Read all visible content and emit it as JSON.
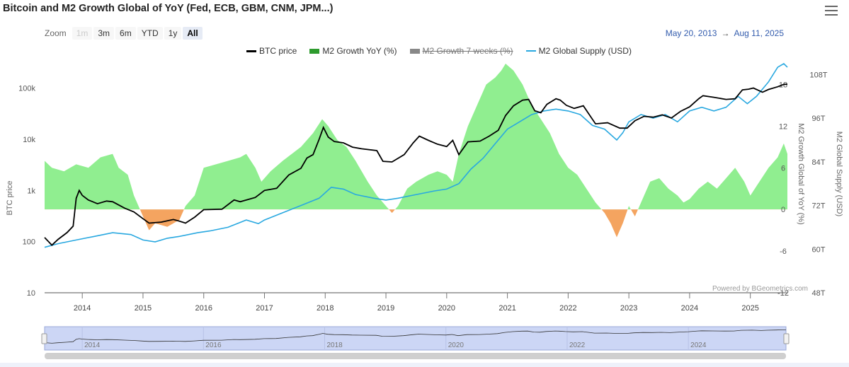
{
  "title": "Bitcoin and M2 Growth Global of YoY (Fed, ECB, GBM, CNM, JPM...)",
  "toolbar": {
    "zoom_label": "Zoom",
    "buttons": [
      "1m",
      "3m",
      "6m",
      "YTD",
      "1y",
      "All"
    ],
    "active": "All",
    "disabled": [
      "1m"
    ],
    "range_from": "May 20, 2013",
    "range_arrow": "→",
    "range_to": "Aug 11, 2025"
  },
  "legend": [
    {
      "name": "BTC price",
      "color": "#000000",
      "hidden": false
    },
    {
      "name": "M2 Growth YoY (%)",
      "color": "#2e9b2e",
      "hidden": false
    },
    {
      "name": "M2 Growth 7 weeks (%)",
      "color": "#888888",
      "hidden": true
    },
    {
      "name": "M2 Global Supply (USD)",
      "color": "#29a8e0",
      "hidden": false
    }
  ],
  "credit": "Powered by BGeometrics.com",
  "colors": {
    "btc": "#000000",
    "growth_pos": "#90ee90",
    "growth_neg": "#f4a460",
    "supply": "#29a8e0",
    "navigator_bg": "#ccd6f5"
  },
  "chart_data": {
    "type": "line",
    "x_range": [
      2013.38,
      2025.61
    ],
    "x_ticks": [
      "2014",
      "2015",
      "2016",
      "2017",
      "2018",
      "2019",
      "2020",
      "2021",
      "2022",
      "2023",
      "2024",
      "2025"
    ],
    "left_axis": {
      "label": "BTC price",
      "scale": "log",
      "range": [
        10,
        300000
      ],
      "ticks": [
        "10",
        "100",
        "1k",
        "10k",
        "100k"
      ]
    },
    "right_axis_growth": {
      "label": "M2 Growth Global of YoY (%)",
      "range": [
        -12,
        21
      ],
      "ticks": [
        "-12",
        "-6",
        "0",
        "6",
        "12",
        "18"
      ]
    },
    "right_axis_supply": {
      "label": "M2 Global Supply (USD)",
      "range": [
        48,
        111
      ],
      "ticks": [
        "48T",
        "60T",
        "72T",
        "84T",
        "96T",
        "108T"
      ]
    },
    "series": [
      {
        "name": "BTC price",
        "axis": "left",
        "points": [
          [
            2013.38,
            120
          ],
          [
            2013.5,
            85
          ],
          [
            2013.6,
            110
          ],
          [
            2013.75,
            150
          ],
          [
            2013.85,
            200
          ],
          [
            2013.9,
            700
          ],
          [
            2013.95,
            1000
          ],
          [
            2014.0,
            800
          ],
          [
            2014.1,
            650
          ],
          [
            2014.25,
            550
          ],
          [
            2014.4,
            620
          ],
          [
            2014.5,
            600
          ],
          [
            2014.7,
            450
          ],
          [
            2014.85,
            380
          ],
          [
            2015.0,
            280
          ],
          [
            2015.1,
            230
          ],
          [
            2015.3,
            240
          ],
          [
            2015.5,
            270
          ],
          [
            2015.6,
            250
          ],
          [
            2015.7,
            230
          ],
          [
            2015.85,
            300
          ],
          [
            2016.0,
            420
          ],
          [
            2016.3,
            430
          ],
          [
            2016.5,
            650
          ],
          [
            2016.6,
            600
          ],
          [
            2016.85,
            730
          ],
          [
            2017.0,
            1000
          ],
          [
            2017.2,
            1100
          ],
          [
            2017.4,
            2000
          ],
          [
            2017.6,
            2700
          ],
          [
            2017.7,
            4300
          ],
          [
            2017.8,
            5000
          ],
          [
            2017.9,
            10000
          ],
          [
            2017.97,
            17000
          ],
          [
            2018.05,
            11000
          ],
          [
            2018.15,
            9000
          ],
          [
            2018.3,
            8500
          ],
          [
            2018.45,
            7000
          ],
          [
            2018.6,
            6500
          ],
          [
            2018.85,
            6000
          ],
          [
            2018.95,
            3700
          ],
          [
            2019.1,
            3600
          ],
          [
            2019.3,
            5000
          ],
          [
            2019.45,
            8500
          ],
          [
            2019.55,
            11500
          ],
          [
            2019.7,
            9500
          ],
          [
            2019.85,
            8000
          ],
          [
            2020.0,
            7200
          ],
          [
            2020.1,
            9500
          ],
          [
            2020.2,
            5000
          ],
          [
            2020.35,
            8900
          ],
          [
            2020.55,
            9200
          ],
          [
            2020.7,
            11500
          ],
          [
            2020.85,
            15000
          ],
          [
            2020.97,
            29000
          ],
          [
            2021.1,
            45000
          ],
          [
            2021.25,
            58000
          ],
          [
            2021.35,
            60000
          ],
          [
            2021.45,
            36000
          ],
          [
            2021.55,
            33000
          ],
          [
            2021.65,
            48000
          ],
          [
            2021.8,
            62000
          ],
          [
            2021.87,
            58000
          ],
          [
            2021.97,
            46000
          ],
          [
            2022.1,
            40000
          ],
          [
            2022.25,
            45000
          ],
          [
            2022.35,
            30000
          ],
          [
            2022.45,
            20000
          ],
          [
            2022.65,
            21000
          ],
          [
            2022.85,
            16500
          ],
          [
            2022.97,
            16500
          ],
          [
            2023.1,
            23000
          ],
          [
            2023.25,
            28000
          ],
          [
            2023.4,
            27000
          ],
          [
            2023.55,
            30000
          ],
          [
            2023.7,
            26000
          ],
          [
            2023.85,
            35000
          ],
          [
            2024.0,
            43000
          ],
          [
            2024.15,
            62000
          ],
          [
            2024.22,
            71000
          ],
          [
            2024.4,
            66000
          ],
          [
            2024.6,
            60000
          ],
          [
            2024.75,
            62000
          ],
          [
            2024.87,
            92000
          ],
          [
            2024.97,
            95000
          ],
          [
            2025.05,
            100000
          ],
          [
            2025.2,
            83000
          ],
          [
            2025.3,
            94000
          ],
          [
            2025.45,
            106000
          ],
          [
            2025.55,
            118000
          ],
          [
            2025.61,
            119000
          ]
        ]
      },
      {
        "name": "M2 Growth YoY (%)",
        "axis": "right_growth",
        "points": [
          [
            2013.38,
            7
          ],
          [
            2013.5,
            6
          ],
          [
            2013.7,
            5.5
          ],
          [
            2013.9,
            6.5
          ],
          [
            2014.1,
            6
          ],
          [
            2014.3,
            7.5
          ],
          [
            2014.5,
            8
          ],
          [
            2014.6,
            6
          ],
          [
            2014.75,
            5
          ],
          [
            2014.85,
            2
          ],
          [
            2015.0,
            -1
          ],
          [
            2015.1,
            -3
          ],
          [
            2015.2,
            -2
          ],
          [
            2015.4,
            -2.5
          ],
          [
            2015.6,
            -1.5
          ],
          [
            2015.7,
            0.5
          ],
          [
            2015.85,
            2
          ],
          [
            2016.0,
            6
          ],
          [
            2016.2,
            6.5
          ],
          [
            2016.4,
            7
          ],
          [
            2016.6,
            7.5
          ],
          [
            2016.7,
            8
          ],
          [
            2016.85,
            6
          ],
          [
            2016.95,
            4
          ],
          [
            2017.1,
            5.5
          ],
          [
            2017.3,
            7
          ],
          [
            2017.45,
            8
          ],
          [
            2017.6,
            9
          ],
          [
            2017.8,
            11
          ],
          [
            2017.95,
            13
          ],
          [
            2018.05,
            12
          ],
          [
            2018.2,
            10
          ],
          [
            2018.35,
            9
          ],
          [
            2018.5,
            7
          ],
          [
            2018.7,
            4
          ],
          [
            2018.85,
            2
          ],
          [
            2019.0,
            0.5
          ],
          [
            2019.1,
            -0.5
          ],
          [
            2019.2,
            0.5
          ],
          [
            2019.35,
            3
          ],
          [
            2019.5,
            4
          ],
          [
            2019.7,
            5
          ],
          [
            2019.85,
            5.5
          ],
          [
            2020.0,
            5
          ],
          [
            2020.1,
            4
          ],
          [
            2020.2,
            8
          ],
          [
            2020.35,
            12
          ],
          [
            2020.5,
            15
          ],
          [
            2020.65,
            18
          ],
          [
            2020.8,
            19
          ],
          [
            2020.9,
            20
          ],
          [
            2020.97,
            21
          ],
          [
            2021.1,
            20
          ],
          [
            2021.25,
            18
          ],
          [
            2021.4,
            15
          ],
          [
            2021.55,
            13
          ],
          [
            2021.7,
            11
          ],
          [
            2021.85,
            8
          ],
          [
            2022.0,
            6
          ],
          [
            2022.15,
            5
          ],
          [
            2022.3,
            3
          ],
          [
            2022.45,
            1
          ],
          [
            2022.6,
            -0.5
          ],
          [
            2022.7,
            -2
          ],
          [
            2022.8,
            -4
          ],
          [
            2022.9,
            -2
          ],
          [
            2023.0,
            0.5
          ],
          [
            2023.1,
            -1
          ],
          [
            2023.2,
            1
          ],
          [
            2023.35,
            4
          ],
          [
            2023.5,
            4.5
          ],
          [
            2023.65,
            3
          ],
          [
            2023.8,
            2
          ],
          [
            2023.9,
            1
          ],
          [
            2024.0,
            1.5
          ],
          [
            2024.15,
            3
          ],
          [
            2024.3,
            4
          ],
          [
            2024.45,
            3
          ],
          [
            2024.6,
            4.5
          ],
          [
            2024.75,
            6
          ],
          [
            2024.9,
            4
          ],
          [
            2025.0,
            2
          ],
          [
            2025.15,
            4
          ],
          [
            2025.3,
            6
          ],
          [
            2025.45,
            7.5
          ],
          [
            2025.55,
            9.5
          ],
          [
            2025.61,
            8
          ]
        ]
      },
      {
        "name": "M2 Global Supply (USD)",
        "axis": "right_supply",
        "points": [
          [
            2013.38,
            60.5
          ],
          [
            2013.6,
            61.5
          ],
          [
            2013.9,
            62.5
          ],
          [
            2014.2,
            63.5
          ],
          [
            2014.5,
            64.5
          ],
          [
            2014.8,
            64
          ],
          [
            2015.0,
            62.5
          ],
          [
            2015.2,
            62
          ],
          [
            2015.4,
            63
          ],
          [
            2015.6,
            63.5
          ],
          [
            2015.9,
            64.5
          ],
          [
            2016.1,
            65
          ],
          [
            2016.4,
            66
          ],
          [
            2016.7,
            68
          ],
          [
            2016.9,
            67
          ],
          [
            2017.0,
            68
          ],
          [
            2017.3,
            70
          ],
          [
            2017.6,
            72
          ],
          [
            2017.9,
            74
          ],
          [
            2018.1,
            77
          ],
          [
            2018.3,
            76.5
          ],
          [
            2018.5,
            75
          ],
          [
            2018.8,
            74
          ],
          [
            2019.0,
            73.5
          ],
          [
            2019.2,
            74
          ],
          [
            2019.5,
            75
          ],
          [
            2019.8,
            76
          ],
          [
            2020.0,
            76.5
          ],
          [
            2020.2,
            78
          ],
          [
            2020.4,
            82
          ],
          [
            2020.6,
            85
          ],
          [
            2020.8,
            89
          ],
          [
            2021.0,
            93
          ],
          [
            2021.2,
            95
          ],
          [
            2021.4,
            97
          ],
          [
            2021.6,
            98
          ],
          [
            2021.8,
            98.5
          ],
          [
            2022.0,
            98
          ],
          [
            2022.2,
            97
          ],
          [
            2022.4,
            94
          ],
          [
            2022.6,
            93
          ],
          [
            2022.8,
            90
          ],
          [
            2022.9,
            92
          ],
          [
            2023.0,
            95
          ],
          [
            2023.2,
            97
          ],
          [
            2023.4,
            96
          ],
          [
            2023.6,
            97
          ],
          [
            2023.8,
            95
          ],
          [
            2024.0,
            98
          ],
          [
            2024.2,
            99
          ],
          [
            2024.4,
            98
          ],
          [
            2024.6,
            99
          ],
          [
            2024.8,
            102
          ],
          [
            2024.95,
            100
          ],
          [
            2025.1,
            102
          ],
          [
            2025.3,
            106
          ],
          [
            2025.45,
            110
          ],
          [
            2025.55,
            111
          ],
          [
            2025.61,
            110
          ]
        ]
      }
    ]
  }
}
